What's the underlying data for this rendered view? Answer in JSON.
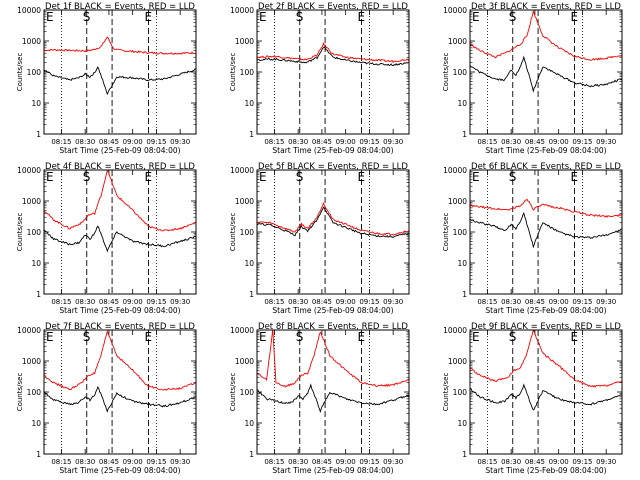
{
  "figure": {
    "tick_labels_y": [
      "1",
      "10",
      "100",
      "1000",
      "10000"
    ],
    "tick_labels_x": [
      "08:15",
      "08:30",
      "08:45",
      "09:00",
      "09:15",
      "09:30"
    ]
  },
  "colors": {
    "events": "#000000",
    "lld": "#ff0000",
    "frame": "#000000"
  },
  "chart_data": [
    {
      "type": "line",
      "title": "Det 1f BLACK = Events, RED = LLD",
      "xlabel": "Start Time (25-Feb-09 08:04:00)",
      "ylabel": "Counts/sec",
      "y_scale": "log",
      "ylim": [
        1,
        10000
      ],
      "xlim": [
        "08:04",
        "09:40"
      ],
      "markers": [
        {
          "label": "E",
          "time": "08:04"
        },
        {
          "label": "S",
          "time": "08:31"
        },
        {
          "label": "E",
          "time": "09:10"
        }
      ],
      "series": [
        {
          "name": "LLD",
          "x": [
            "08:04",
            "08:10",
            "08:20",
            "08:30",
            "08:35",
            "08:40",
            "08:44",
            "08:48",
            "08:52",
            "09:00",
            "09:10",
            "09:20",
            "09:30",
            "09:40"
          ],
          "y": [
            500,
            520,
            500,
            480,
            520,
            650,
            1350,
            560,
            500,
            460,
            420,
            400,
            400,
            420
          ]
        },
        {
          "name": "Events",
          "x": [
            "08:04",
            "08:10",
            "08:20",
            "08:26",
            "08:30",
            "08:33",
            "08:36",
            "08:38",
            "08:44",
            "08:50",
            "09:00",
            "09:10",
            "09:20",
            "09:30",
            "09:40"
          ],
          "y": [
            120,
            75,
            55,
            65,
            85,
            70,
            95,
            150,
            20,
            70,
            65,
            55,
            60,
            85,
            120
          ]
        }
      ]
    },
    {
      "type": "line",
      "title": "Det 2f BLACK = Events, RED = LLD",
      "xlabel": "Start Time (25-Feb-09 08:04:00)",
      "ylabel": "Counts/sec",
      "y_scale": "log",
      "ylim": [
        1,
        10000
      ],
      "xlim": [
        "08:04",
        "09:40"
      ],
      "markers": [
        {
          "label": "E",
          "time": "08:04"
        },
        {
          "label": "S",
          "time": "08:31"
        },
        {
          "label": "E",
          "time": "09:10"
        }
      ],
      "series": [
        {
          "name": "LLD",
          "x": [
            "08:04",
            "08:15",
            "08:25",
            "08:35",
            "08:42",
            "08:46",
            "08:52",
            "09:00",
            "09:10",
            "09:20",
            "09:30",
            "09:40"
          ],
          "y": [
            300,
            320,
            280,
            250,
            350,
            800,
            380,
            300,
            260,
            240,
            220,
            260
          ]
        },
        {
          "name": "Events",
          "x": [
            "08:04",
            "08:15",
            "08:25",
            "08:35",
            "08:42",
            "08:46",
            "08:52",
            "09:00",
            "09:10",
            "09:20",
            "09:30",
            "09:40"
          ],
          "y": [
            250,
            260,
            230,
            200,
            290,
            650,
            300,
            240,
            200,
            180,
            170,
            200
          ]
        }
      ]
    },
    {
      "type": "line",
      "title": "Det 3f BLACK = Events, RED = LLD",
      "xlabel": "Start Time (25-Feb-09 08:04:00)",
      "ylabel": "Counts/sec",
      "y_scale": "log",
      "ylim": [
        1,
        10000
      ],
      "xlim": [
        "08:04",
        "09:40"
      ],
      "markers": [
        {
          "label": "E",
          "time": "08:04"
        },
        {
          "label": "S",
          "time": "08:31"
        },
        {
          "label": "E",
          "time": "09:10"
        }
      ],
      "series": [
        {
          "name": "LLD",
          "x": [
            "08:04",
            "08:10",
            "08:20",
            "08:28",
            "08:32",
            "08:36",
            "08:40",
            "08:44",
            "08:50",
            "09:00",
            "09:10",
            "09:20",
            "09:30",
            "09:40"
          ],
          "y": [
            800,
            500,
            300,
            450,
            600,
            800,
            1500,
            9000,
            1500,
            600,
            320,
            250,
            280,
            350
          ]
        },
        {
          "name": "Events",
          "x": [
            "08:04",
            "08:10",
            "08:20",
            "08:26",
            "08:30",
            "08:33",
            "08:36",
            "08:38",
            "08:44",
            "08:50",
            "09:00",
            "09:10",
            "09:20",
            "09:30",
            "09:40"
          ],
          "y": [
            160,
            100,
            60,
            55,
            120,
            80,
            150,
            300,
            25,
            150,
            80,
            45,
            35,
            40,
            60
          ]
        }
      ]
    },
    {
      "type": "line",
      "title": "Det 4f BLACK = Events, RED = LLD",
      "xlabel": "Start Time (25-Feb-09 08:04:00)",
      "ylabel": "Counts/sec",
      "y_scale": "log",
      "ylim": [
        1,
        10000
      ],
      "xlim": [
        "08:04",
        "09:40"
      ],
      "markers": [
        {
          "label": "E",
          "time": "08:04"
        },
        {
          "label": "S",
          "time": "08:31"
        },
        {
          "label": "E",
          "time": "09:10"
        }
      ],
      "series": [
        {
          "name": "LLD",
          "x": [
            "08:04",
            "08:10",
            "08:20",
            "08:28",
            "08:32",
            "08:36",
            "08:40",
            "08:44",
            "08:50",
            "09:00",
            "09:10",
            "09:20",
            "09:30",
            "09:40"
          ],
          "y": [
            500,
            250,
            130,
            200,
            350,
            400,
            1500,
            10000,
            1500,
            500,
            150,
            110,
            130,
            200
          ]
        },
        {
          "name": "Events",
          "x": [
            "08:04",
            "08:10",
            "08:20",
            "08:26",
            "08:30",
            "08:33",
            "08:36",
            "08:38",
            "08:44",
            "08:50",
            "09:00",
            "09:10",
            "09:20",
            "09:30",
            "09:40"
          ],
          "y": [
            120,
            60,
            40,
            45,
            80,
            60,
            90,
            160,
            25,
            100,
            50,
            40,
            35,
            50,
            70
          ]
        }
      ]
    },
    {
      "type": "line",
      "title": "Det 5f BLACK = Events, RED = LLD",
      "xlabel": "Start Time (25-Feb-09 08:04:00)",
      "ylabel": "Counts/sec",
      "y_scale": "log",
      "ylim": [
        1,
        10000
      ],
      "xlim": [
        "08:04",
        "09:40"
      ],
      "markers": [
        {
          "label": "E",
          "time": "08:04"
        },
        {
          "label": "S",
          "time": "08:31"
        },
        {
          "label": "E",
          "time": "09:10"
        }
      ],
      "series": [
        {
          "name": "LLD",
          "x": [
            "08:04",
            "08:12",
            "08:20",
            "08:28",
            "08:32",
            "08:36",
            "08:42",
            "08:46",
            "08:52",
            "09:00",
            "09:10",
            "09:20",
            "09:30",
            "09:40"
          ],
          "y": [
            210,
            200,
            140,
            100,
            180,
            130,
            300,
            850,
            250,
            180,
            110,
            90,
            85,
            110
          ]
        },
        {
          "name": "Events",
          "x": [
            "08:04",
            "08:12",
            "08:20",
            "08:28",
            "08:32",
            "08:36",
            "08:42",
            "08:46",
            "08:52",
            "09:00",
            "09:10",
            "09:20",
            "09:30",
            "09:40"
          ],
          "y": [
            180,
            170,
            120,
            80,
            150,
            110,
            240,
            650,
            200,
            140,
            90,
            75,
            70,
            90
          ]
        }
      ]
    },
    {
      "type": "line",
      "title": "Det 6f BLACK = Events, RED = LLD",
      "xlabel": "Start Time (25-Feb-09 08:04:00)",
      "ylabel": "Counts/sec",
      "y_scale": "log",
      "ylim": [
        1,
        10000
      ],
      "xlim": [
        "08:04",
        "09:40"
      ],
      "markers": [
        {
          "label": "E",
          "time": "08:04"
        },
        {
          "label": "S",
          "time": "08:31"
        },
        {
          "label": "E",
          "time": "09:10"
        }
      ],
      "series": [
        {
          "name": "LLD",
          "x": [
            "08:04",
            "08:10",
            "08:20",
            "08:28",
            "08:32",
            "08:36",
            "08:40",
            "08:44",
            "08:50",
            "09:00",
            "09:10",
            "09:20",
            "09:30",
            "09:40"
          ],
          "y": [
            700,
            650,
            560,
            520,
            600,
            700,
            1200,
            550,
            750,
            600,
            450,
            350,
            320,
            350
          ]
        },
        {
          "name": "Events",
          "x": [
            "08:04",
            "08:10",
            "08:20",
            "08:26",
            "08:30",
            "08:33",
            "08:36",
            "08:38",
            "08:44",
            "08:50",
            "09:00",
            "09:10",
            "09:20",
            "09:30",
            "09:40"
          ],
          "y": [
            250,
            200,
            150,
            110,
            180,
            130,
            240,
            400,
            35,
            200,
            100,
            70,
            65,
            80,
            120
          ]
        }
      ]
    },
    {
      "type": "line",
      "title": "Det 7f BLACK = Events, RED = LLD",
      "xlabel": "Start Time (25-Feb-09 08:04:00)",
      "ylabel": "Counts/sec",
      "y_scale": "log",
      "ylim": [
        1,
        10000
      ],
      "xlim": [
        "08:04",
        "09:40"
      ],
      "markers": [
        {
          "label": "E",
          "time": "08:04"
        },
        {
          "label": "S",
          "time": "08:31"
        },
        {
          "label": "E",
          "time": "09:10"
        }
      ],
      "series": [
        {
          "name": "LLD",
          "x": [
            "08:04",
            "08:10",
            "08:20",
            "08:28",
            "08:32",
            "08:36",
            "08:40",
            "08:44",
            "08:50",
            "09:00",
            "09:10",
            "09:20",
            "09:30",
            "09:40"
          ],
          "y": [
            350,
            200,
            120,
            200,
            350,
            400,
            1500,
            9000,
            1500,
            500,
            150,
            120,
            130,
            200
          ]
        },
        {
          "name": "Events",
          "x": [
            "08:04",
            "08:10",
            "08:20",
            "08:26",
            "08:30",
            "08:33",
            "08:36",
            "08:38",
            "08:44",
            "08:50",
            "09:00",
            "09:10",
            "09:20",
            "09:30",
            "09:40"
          ],
          "y": [
            100,
            55,
            40,
            45,
            70,
            55,
            80,
            150,
            25,
            90,
            50,
            40,
            35,
            45,
            70
          ]
        }
      ]
    },
    {
      "type": "line",
      "title": "Det 8f BLACK = Events, RED = LLD",
      "xlabel": "Start Time (25-Feb-09 08:04:00)",
      "ylabel": "Counts/sec",
      "y_scale": "log",
      "ylim": [
        1,
        10000
      ],
      "xlim": [
        "08:04",
        "09:40"
      ],
      "markers": [
        {
          "label": "E",
          "time": "08:04"
        },
        {
          "label": "S",
          "time": "08:31"
        },
        {
          "label": "E",
          "time": "09:10"
        }
      ],
      "series": [
        {
          "name": "LLD",
          "x": [
            "08:04",
            "08:10",
            "08:14",
            "08:16",
            "08:22",
            "08:28",
            "08:32",
            "08:36",
            "08:40",
            "08:44",
            "08:50",
            "09:00",
            "09:10",
            "09:20",
            "09:30",
            "09:40"
          ],
          "y": [
            400,
            250,
            10000,
            200,
            150,
            200,
            350,
            400,
            1500,
            9000,
            1500,
            500,
            200,
            160,
            170,
            250
          ]
        },
        {
          "name": "Events",
          "x": [
            "08:04",
            "08:10",
            "08:20",
            "08:26",
            "08:30",
            "08:33",
            "08:36",
            "08:38",
            "08:44",
            "08:50",
            "09:00",
            "09:10",
            "09:20",
            "09:30",
            "09:40"
          ],
          "y": [
            120,
            60,
            45,
            45,
            75,
            60,
            90,
            160,
            25,
            100,
            60,
            45,
            40,
            55,
            80
          ]
        }
      ]
    },
    {
      "type": "line",
      "title": "Det 9f BLACK = Events, RED = LLD",
      "xlabel": "Start Time (25-Feb-09 08:04:00)",
      "ylabel": "Counts/sec",
      "y_scale": "log",
      "ylim": [
        1,
        10000
      ],
      "xlim": [
        "08:04",
        "09:40"
      ],
      "markers": [
        {
          "label": "E",
          "time": "08:04"
        },
        {
          "label": "S",
          "time": "08:31"
        },
        {
          "label": "E",
          "time": "09:10"
        }
      ],
      "series": [
        {
          "name": "LLD",
          "x": [
            "08:04",
            "08:10",
            "08:20",
            "08:28",
            "08:32",
            "08:36",
            "08:40",
            "08:44",
            "08:50",
            "09:00",
            "09:10",
            "09:20",
            "09:30",
            "09:40"
          ],
          "y": [
            600,
            350,
            220,
            300,
            500,
            600,
            1800,
            10000,
            1800,
            700,
            250,
            150,
            160,
            220
          ]
        },
        {
          "name": "Events",
          "x": [
            "08:04",
            "08:10",
            "08:20",
            "08:26",
            "08:30",
            "08:33",
            "08:36",
            "08:38",
            "08:44",
            "08:50",
            "09:00",
            "09:10",
            "09:20",
            "09:30",
            "09:40"
          ],
          "y": [
            130,
            70,
            45,
            50,
            85,
            65,
            95,
            170,
            25,
            110,
            60,
            45,
            40,
            55,
            80
          ]
        }
      ]
    }
  ]
}
